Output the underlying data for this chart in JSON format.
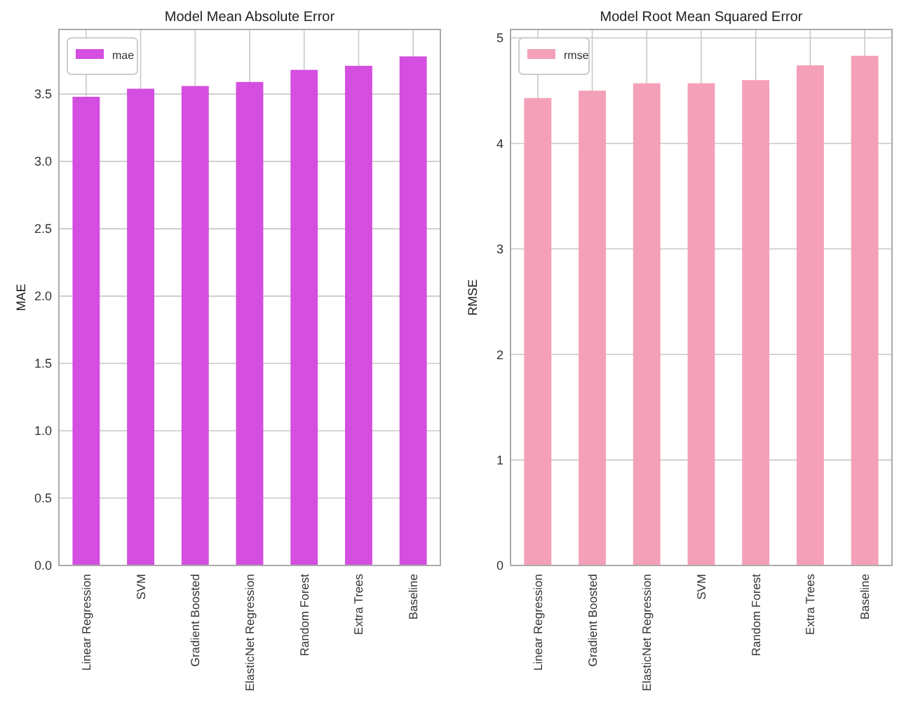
{
  "chart_data": [
    {
      "type": "bar",
      "title": "Model Mean Absolute Error",
      "ylabel": "MAE",
      "categories": [
        "Linear Regression",
        "SVM",
        "Gradient Boosted",
        "ElasticNet Regression",
        "Random Forest",
        "Extra Trees",
        "Baseline"
      ],
      "series": [
        {
          "name": "mae",
          "color": "#d44ee0",
          "values": [
            3.48,
            3.54,
            3.56,
            3.59,
            3.68,
            3.71,
            3.78
          ]
        }
      ],
      "ylim": [
        0,
        3.98
      ],
      "yticks": [
        {
          "value": 0,
          "label": "0.0"
        },
        {
          "value": 0.5,
          "label": "0.5"
        },
        {
          "value": 1,
          "label": "1.0"
        },
        {
          "value": 1.5,
          "label": "1.5"
        },
        {
          "value": 2,
          "label": "2.0"
        },
        {
          "value": 2.5,
          "label": "2.5"
        },
        {
          "value": 3,
          "label": "3.0"
        },
        {
          "value": 3.5,
          "label": "3.5"
        }
      ],
      "grid": true,
      "legend": "top left"
    },
    {
      "type": "bar",
      "title": "Model Root Mean Squared Error",
      "ylabel": "RMSE",
      "categories": [
        "Linear Regression",
        "Gradient Boosted",
        "ElasticNet Regression",
        "SVM",
        "Random Forest",
        "Extra Trees",
        "Baseline"
      ],
      "series": [
        {
          "name": "rmse",
          "color": "#f4a0b8",
          "values": [
            4.43,
            4.5,
            4.57,
            4.57,
            4.6,
            4.74,
            4.83
          ]
        }
      ],
      "ylim": [
        0,
        5.08
      ],
      "yticks": [
        0,
        1,
        2,
        3,
        4,
        5
      ],
      "grid": true,
      "legend": "top left"
    }
  ]
}
